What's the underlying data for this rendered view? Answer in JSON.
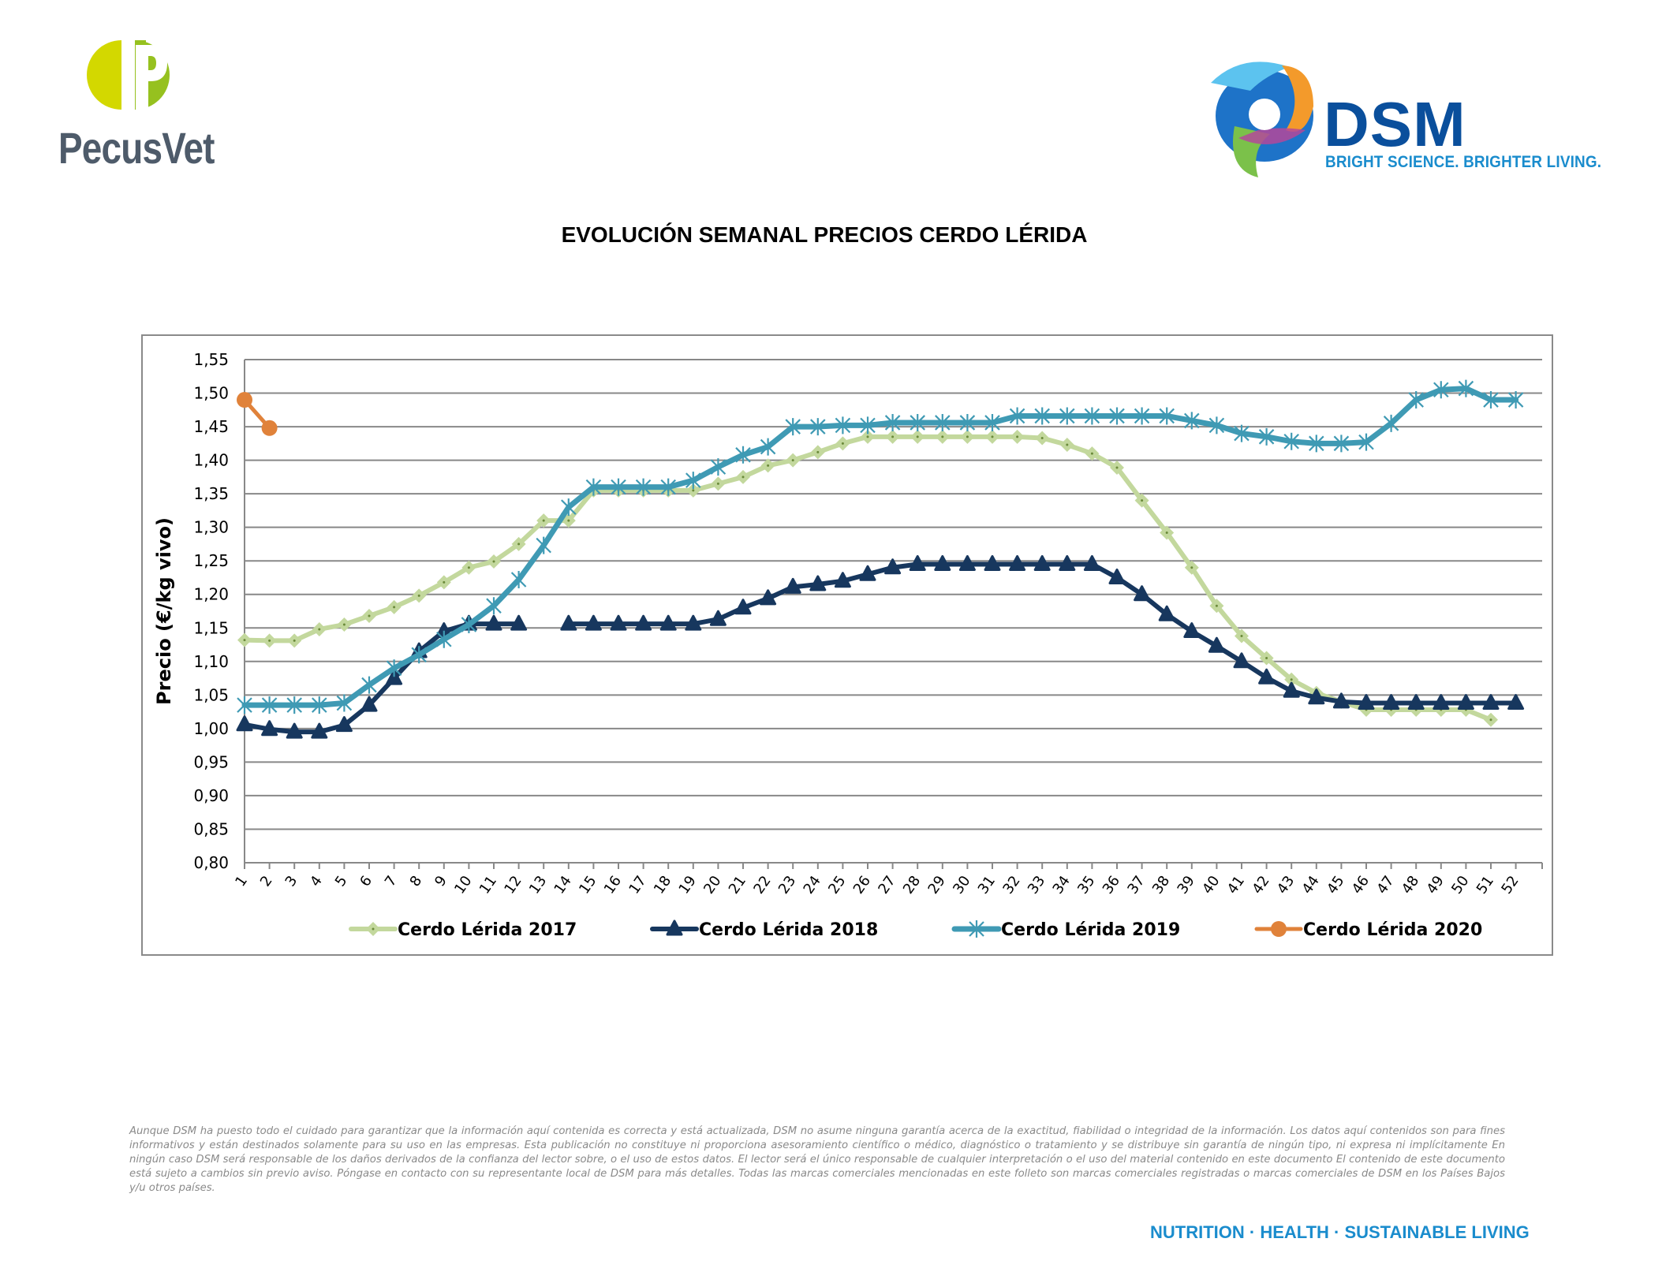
{
  "header": {
    "left_logo": {
      "name": "PecusVet",
      "colors": {
        "left_half": "#d3d800",
        "right_half": "#96c11f",
        "text": "#4e5b6a"
      }
    },
    "right_logo": {
      "name": "DSM",
      "tagline": "BRIGHT SCIENCE. BRIGHTER LIVING.",
      "colors": {
        "word": "#0a4f9c",
        "tagline": "#1a8ccd"
      }
    }
  },
  "chart_data": {
    "type": "line",
    "title": "EVOLUCIÓN SEMANAL PRECIOS CERDO LÉRIDA",
    "xlabel": "",
    "ylabel": "Precio (€/kg vivo)",
    "ylim": [
      0.8,
      1.55
    ],
    "yticks": [
      "0,80",
      "0,85",
      "0,90",
      "0,95",
      "1,00",
      "1,05",
      "1,10",
      "1,15",
      "1,20",
      "1,25",
      "1,30",
      "1,35",
      "1,40",
      "1,45",
      "1,50",
      "1,55"
    ],
    "ytick_values": [
      0.8,
      0.85,
      0.9,
      0.95,
      1.0,
      1.05,
      1.1,
      1.15,
      1.2,
      1.25,
      1.3,
      1.35,
      1.4,
      1.45,
      1.5,
      1.55
    ],
    "x": [
      1,
      2,
      3,
      4,
      5,
      6,
      7,
      8,
      9,
      10,
      11,
      12,
      13,
      14,
      15,
      16,
      17,
      18,
      19,
      20,
      21,
      22,
      23,
      24,
      25,
      26,
      27,
      28,
      29,
      30,
      31,
      32,
      33,
      34,
      35,
      36,
      37,
      38,
      39,
      40,
      41,
      42,
      43,
      44,
      45,
      46,
      47,
      48,
      49,
      50,
      51,
      52
    ],
    "grid": "horizontal",
    "legend_position": "bottom",
    "series": [
      {
        "name": "Cerdo Lérida 2017",
        "color": "#c3d89d",
        "marker": "diamond",
        "values": [
          1.132,
          1.131,
          1.131,
          1.148,
          1.155,
          1.168,
          1.181,
          1.198,
          1.218,
          1.24,
          1.249,
          1.275,
          1.31,
          1.31,
          1.355,
          1.355,
          1.355,
          1.355,
          1.355,
          1.365,
          1.375,
          1.392,
          1.4,
          1.412,
          1.425,
          1.435,
          1.435,
          1.435,
          1.435,
          1.435,
          1.435,
          1.435,
          1.433,
          1.423,
          1.41,
          1.389,
          1.34,
          1.292,
          1.24,
          1.183,
          1.138,
          1.105,
          1.073,
          1.053,
          1.04,
          1.028,
          1.028,
          1.028,
          1.028,
          1.028,
          1.013,
          null
        ]
      },
      {
        "name": "Cerdo Lérida 2018",
        "color": "#17375e",
        "marker": "triangle",
        "values": [
          1.006,
          0.999,
          0.995,
          0.995,
          1.005,
          1.035,
          1.075,
          1.115,
          1.145,
          1.156,
          1.156,
          1.156,
          null,
          1.156,
          1.156,
          1.156,
          1.156,
          1.156,
          1.156,
          1.163,
          1.18,
          1.194,
          1.211,
          1.215,
          1.22,
          1.23,
          1.24,
          1.245,
          1.245,
          1.245,
          1.245,
          1.245,
          1.245,
          1.245,
          1.245,
          1.225,
          1.2,
          1.17,
          1.145,
          1.123,
          1.1,
          1.076,
          1.056,
          1.046,
          1.04,
          1.038,
          1.038,
          1.038,
          1.038,
          1.038,
          1.038,
          1.038
        ]
      },
      {
        "name": "Cerdo Lérida 2019",
        "color": "#3f9ab4",
        "marker": "star",
        "values": [
          1.035,
          1.035,
          1.035,
          1.035,
          1.038,
          1.065,
          1.09,
          1.11,
          1.133,
          1.155,
          1.183,
          1.222,
          1.273,
          1.33,
          1.36,
          1.36,
          1.36,
          1.36,
          1.37,
          1.39,
          1.408,
          1.42,
          1.45,
          1.45,
          1.452,
          1.452,
          1.456,
          1.456,
          1.456,
          1.456,
          1.456,
          1.466,
          1.466,
          1.466,
          1.466,
          1.466,
          1.466,
          1.466,
          1.459,
          1.452,
          1.44,
          1.435,
          1.428,
          1.425,
          1.425,
          1.427,
          1.455,
          1.49,
          1.505,
          1.507,
          1.49,
          1.49
        ]
      },
      {
        "name": "Cerdo Lérida 2020",
        "color": "#e0823a",
        "marker": "circle",
        "values": [
          1.49,
          1.448,
          null,
          null,
          null,
          null,
          null,
          null,
          null,
          null,
          null,
          null,
          null,
          null,
          null,
          null,
          null,
          null,
          null,
          null,
          null,
          null,
          null,
          null,
          null,
          null,
          null,
          null,
          null,
          null,
          null,
          null,
          null,
          null,
          null,
          null,
          null,
          null,
          null,
          null,
          null,
          null,
          null,
          null,
          null,
          null,
          null,
          null,
          null,
          null,
          null,
          null
        ]
      }
    ]
  },
  "disclaimer": "Aunque DSM ha puesto todo el cuidado para garantizar que la información aquí contenida es correcta y está actualizada, DSM no asume ninguna garantía acerca de la exactitud, fiabilidad o integridad de la información. Los datos aquí contenidos son para fines informativos y están destinados solamente para su uso en las empresas. Esta publicación no constituye ni proporciona asesoramiento científico o médico, diagnóstico o tratamiento y se distribuye sin garantía de ningún tipo, ni expresa ni implícitamente En ningún caso DSM será responsable de los daños derivados de la confianza del lector sobre, o el uso de estos datos. El lector será el único responsable de cualquier interpretación o el uso del material contenido en este documento El contenido de este documento está sujeto a cambios sin previo aviso. Póngase en contacto con su representante local de DSM para más detalles. Todas las marcas comerciales mencionadas en este folleto son marcas comerciales registradas o marcas comerciales de DSM en los Países Bajos y/u otros países.",
  "footer": {
    "tagline": "NUTRITION · HEALTH · SUSTAINABLE LIVING",
    "color": "#1a8ccd"
  }
}
